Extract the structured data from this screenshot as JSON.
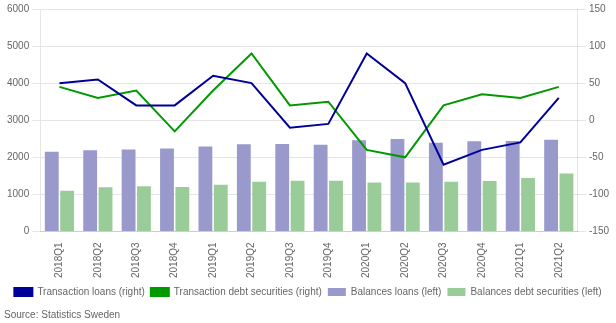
{
  "chart_data": {
    "type": "bar",
    "categories": [
      "2018Q1",
      "2018Q2",
      "2018Q3",
      "2018Q4",
      "2019Q1",
      "2019Q2",
      "2019Q3",
      "2019Q4",
      "2020Q1",
      "2020Q2",
      "2020Q3",
      "2020Q4",
      "2021Q1",
      "2021Q2"
    ],
    "series": [
      {
        "name": "Balances loans (left)",
        "color": "#9999cc",
        "values": [
          2150,
          2190,
          2210,
          2240,
          2290,
          2350,
          2360,
          2340,
          2460,
          2490,
          2390,
          2430,
          2440,
          2470
        ]
      },
      {
        "name": "Balances debt securities (left)",
        "color": "#99cc99",
        "values": [
          1100,
          1190,
          1220,
          1200,
          1260,
          1340,
          1370,
          1370,
          1320,
          1320,
          1340,
          1360,
          1440,
          1560
        ]
      },
      {
        "name": "Transaction loans (right)",
        "color": "#000099",
        "type": "line",
        "axis": "y2",
        "values": [
          50,
          55,
          20,
          20,
          60,
          50,
          -10,
          -5,
          90,
          50,
          -60,
          -40,
          -30,
          30
        ]
      },
      {
        "name": "Transaction debt securities (right)",
        "color": "#009900",
        "type": "line",
        "axis": "y2",
        "values": [
          45,
          30,
          40,
          -15,
          40,
          90,
          20,
          25,
          -40,
          -50,
          20,
          35,
          30,
          45
        ]
      }
    ],
    "ylim": [
      0,
      6000
    ],
    "yticks": [
      0,
      1000,
      2000,
      3000,
      4000,
      5000,
      6000
    ],
    "y2lim": [
      -150,
      150
    ],
    "y2ticks": [
      -150,
      -100,
      -50,
      0,
      50,
      100,
      150
    ],
    "grid": true,
    "legend": "bottom",
    "annotations": [
      "Source: Statistics Sweden"
    ]
  }
}
